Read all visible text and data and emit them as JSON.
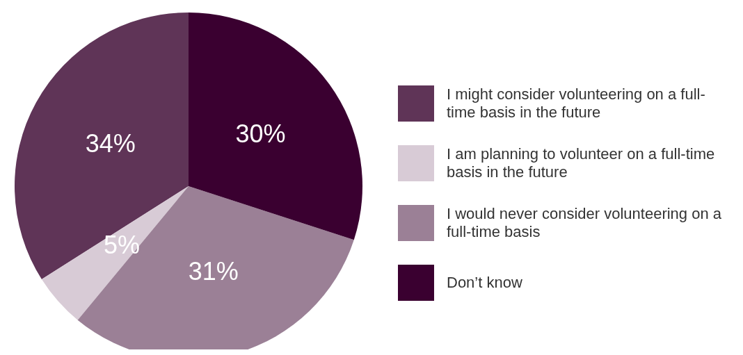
{
  "chart_data": {
    "type": "pie",
    "categories": [
      "I might consider volunteering on a full-time basis in the future",
      "I am planning to volunteer on a full-time basis in the  future",
      "I would never consider volunteering on a full-time basis",
      "Don’t know"
    ],
    "values": [
      34,
      5,
      31,
      30
    ],
    "colors": [
      "#5f3457",
      "#d8cbd6",
      "#9b8096",
      "#3a0030"
    ],
    "value_labels": [
      "34%",
      "5%",
      "31%",
      "30%"
    ],
    "legend": "right"
  }
}
